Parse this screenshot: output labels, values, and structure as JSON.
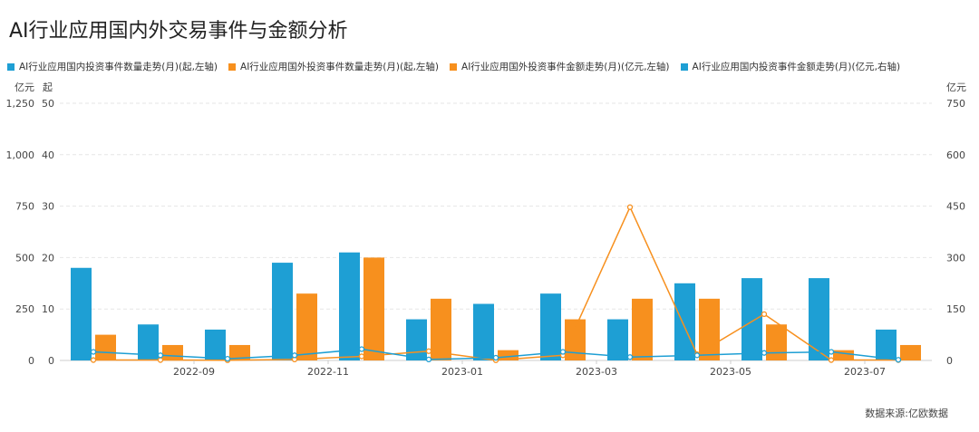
{
  "title": "AI行业应用国内外交易事件与金额分析",
  "source": "数据来源:亿欧数据",
  "chart_data": {
    "type": "bar",
    "title": "AI行业应用国内外交易事件与金额分析",
    "months": [
      "2022-08",
      "2022-09",
      "2022-10",
      "2022-11",
      "2022-12",
      "2023-01",
      "2023-02",
      "2023-03",
      "2023-04",
      "2023-05",
      "2023-06",
      "2023-07",
      "2023-08"
    ],
    "x_tick_labels": [
      "2022-09",
      "2022-11",
      "2023-01",
      "2023-03",
      "2023-05",
      "2023-07"
    ],
    "axes": {
      "left_outer": {
        "unit": "亿元",
        "ticks": [
          "0",
          "250",
          "500",
          "750",
          "1,000",
          "1,250"
        ],
        "ylim": [
          0,
          1250
        ]
      },
      "left_inner": {
        "unit": "起",
        "ticks": [
          "0",
          "10",
          "20",
          "30",
          "40",
          "50"
        ],
        "ylim": [
          0,
          50
        ]
      },
      "right": {
        "unit": "亿元",
        "ticks": [
          "0",
          "150",
          "300",
          "450",
          "600",
          "750"
        ],
        "ylim": [
          0,
          750
        ]
      }
    },
    "series": [
      {
        "name": "AI行业应用国内投资事件数量走势(月)(起,左轴)",
        "type": "bar",
        "axis": "left_inner",
        "color": "#1E9FD4",
        "values": [
          18,
          7,
          6,
          19,
          21,
          8,
          11,
          13,
          8,
          15,
          16,
          16,
          6
        ]
      },
      {
        "name": "AI行业应用国外投资事件数量走势(月)(起,左轴)",
        "type": "bar",
        "axis": "left_inner",
        "color": "#F7901E",
        "values": [
          5,
          3,
          3,
          13,
          20,
          12,
          2,
          8,
          12,
          12,
          7,
          2,
          3
        ]
      },
      {
        "name": "AI行业应用国外投资事件金额走势(月)(亿元,左轴)",
        "type": "line",
        "axis": "left_outer",
        "color": "#F7901E",
        "values": [
          2,
          2,
          1,
          5,
          20,
          45,
          1,
          25,
          745,
          30,
          225,
          2,
          2
        ]
      },
      {
        "name": "AI行业应用国内投资事件金额走势(月)(亿元,右轴)",
        "type": "line",
        "axis": "right",
        "color": "#1E9FD4",
        "values": [
          25,
          15,
          5,
          15,
          33,
          3,
          8,
          25,
          10,
          15,
          22,
          25,
          2
        ]
      }
    ],
    "grid": true,
    "legend_position": "top-left"
  }
}
